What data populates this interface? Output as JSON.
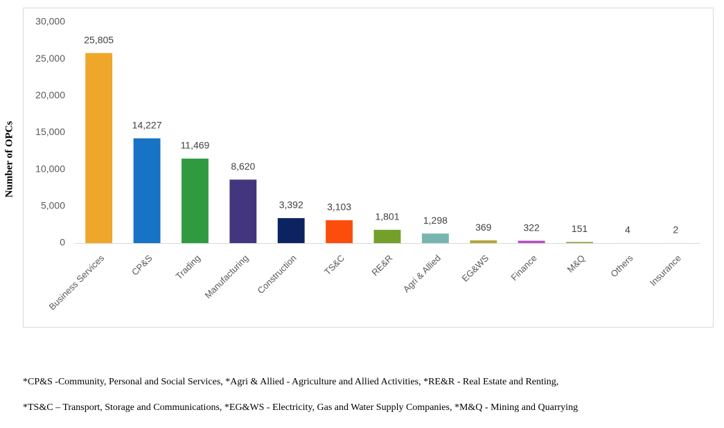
{
  "chart_data": {
    "type": "bar",
    "y_label": "Number of OPCs",
    "categories": [
      "Business Services",
      "CP&S",
      "Trading",
      "Manufacturing",
      "Construction",
      "TS&C",
      "RE&R",
      "Agri & Allied",
      "EG&WS",
      "Finance",
      "M&Q",
      "Others",
      "Insurance"
    ],
    "values": [
      25805,
      14227,
      11469,
      8620,
      3392,
      3103,
      1801,
      1298,
      369,
      322,
      151,
      4,
      2
    ],
    "value_labels": [
      "25,805",
      "14,227",
      "11,469",
      "8,620",
      "3,392",
      "3,103",
      "1,801",
      "1,298",
      "369",
      "322",
      "151",
      "4",
      "2"
    ],
    "colors": [
      "#eea72b",
      "#1673c6",
      "#2f9a40",
      "#43367e",
      "#0b2461",
      "#fb4e0c",
      "#72a02a",
      "#77b5b0",
      "#b4a536",
      "#b44fbe",
      "#8ea33c",
      "#5b8fc7",
      "#d9534f"
    ],
    "ylim": [
      0,
      30000
    ],
    "yticks": [
      0,
      {
        "value": 5000,
        "label": "5,000"
      },
      {
        "value": 10000,
        "label": "10,000"
      },
      {
        "value": 15000,
        "label": "15,000"
      },
      {
        "value": 20000,
        "label": "20,000"
      },
      {
        "value": 25000,
        "label": "25,000"
      },
      {
        "value": 30000,
        "label": "30,000"
      }
    ],
    "grid": false,
    "footnotes": [
      "*CP&S -Community, Personal and Social Services, *Agri & Allied - Agriculture and Allied Activities, *RE&R - Real Estate and Renting,",
      "*TS&C – Transport, Storage and Communications, *EG&WS - Electricity, Gas and Water Supply Companies, *M&Q - Mining and Quarrying"
    ]
  }
}
